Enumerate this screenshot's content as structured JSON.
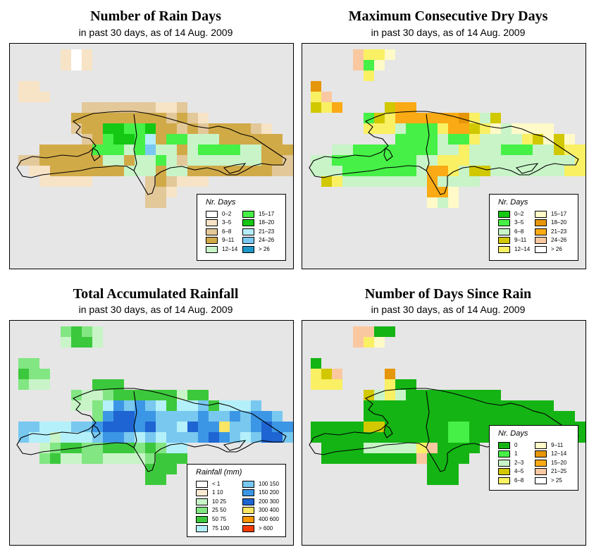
{
  "panels": [
    {
      "id": "rain_days",
      "title": "Number of Rain Days",
      "subtitle": "in past 30 days, as of  14 Aug. 2009",
      "legend": {
        "title": "Nr. Days",
        "columns": [
          [
            {
              "label": "0–2",
              "color": "#ffffff"
            },
            {
              "label": "3–5",
              "color": "#f7e3c6"
            },
            {
              "label": "6–8",
              "color": "#e3c89a"
            },
            {
              "label": "9–11",
              "color": "#d1aa48"
            },
            {
              "label": "12–14",
              "color": "#c8f4c8"
            }
          ],
          [
            {
              "label": "15–17",
              "color": "#46f046"
            },
            {
              "label": "18–20",
              "color": "#14c814"
            },
            {
              "label": "21–23",
              "color": "#b4eefa"
            },
            {
              "label": "24–26",
              "color": "#78c8f0"
            },
            {
              "label": "> 26",
              "color": "#1e96c8"
            }
          ]
        ]
      }
    },
    {
      "id": "dry_days",
      "title": "Maximum Consecutive Dry Days",
      "subtitle": "in past 30 days, as of  14 Aug. 2009",
      "legend": {
        "title": "Nr. Days",
        "columns": [
          [
            {
              "label": "0–2",
              "color": "#14c814"
            },
            {
              "label": "3–5",
              "color": "#46f046"
            },
            {
              "label": "6–8",
              "color": "#c8f4c8"
            },
            {
              "label": "9–11",
              "color": "#d2c800"
            },
            {
              "label": "12–14",
              "color": "#faf064"
            }
          ],
          [
            {
              "label": "15–17",
              "color": "#fffac8"
            },
            {
              "label": "18–20",
              "color": "#e6960a"
            },
            {
              "label": "21–23",
              "color": "#faaa14"
            },
            {
              "label": "24–26",
              "color": "#fac8a0"
            },
            {
              "label": "> 26",
              "color": "#ffffff"
            }
          ]
        ]
      }
    },
    {
      "id": "rainfall",
      "title": "Total Accumulated Rainfall",
      "subtitle": "in past 30 days, as of  14 Aug. 2009",
      "legend": {
        "title": "Rainfall (mm)",
        "columns": [
          [
            {
              "label": "< 1",
              "color": "#ffffff"
            },
            {
              "label": "1   10",
              "color": "#faebd2"
            },
            {
              "label": "10   25",
              "color": "#c8f4c8"
            },
            {
              "label": "25   50",
              "color": "#82e682"
            },
            {
              "label": "50   75",
              "color": "#3cc83c"
            },
            {
              "label": "75   100",
              "color": "#b4f0fa"
            }
          ],
          [
            {
              "label": "100   150",
              "color": "#78c8f0"
            },
            {
              "label": "150   200",
              "color": "#3c96e6"
            },
            {
              "label": "200   300",
              "color": "#1e64d2"
            },
            {
              "label": "300   400",
              "color": "#fae664"
            },
            {
              "label": "400   600",
              "color": "#fa9600"
            },
            {
              "label": "> 600",
              "color": "#fa3c00"
            }
          ]
        ]
      }
    },
    {
      "id": "days_since_rain",
      "title": "Number of Days Since Rain",
      "subtitle": "in past 30 days, as of  14 Aug. 2009",
      "legend": {
        "title": "Nr. Days",
        "columns": [
          [
            {
              "label": "0",
              "color": "#14b414"
            },
            {
              "label": "1",
              "color": "#46f046"
            },
            {
              "label": "2–3",
              "color": "#c8f4c8"
            },
            {
              "label": "4–5",
              "color": "#d2c800"
            },
            {
              "label": "6–8",
              "color": "#faf064"
            }
          ],
          [
            {
              "label": "9–11",
              "color": "#fffac8"
            },
            {
              "label": "12–14",
              "color": "#e6960a"
            },
            {
              "label": "15–20",
              "color": "#faaa14"
            },
            {
              "label": "21–25",
              "color": "#fac8a0"
            },
            {
              "label": "> 25",
              "color": "#ffffff"
            }
          ]
        ]
      }
    }
  ]
}
